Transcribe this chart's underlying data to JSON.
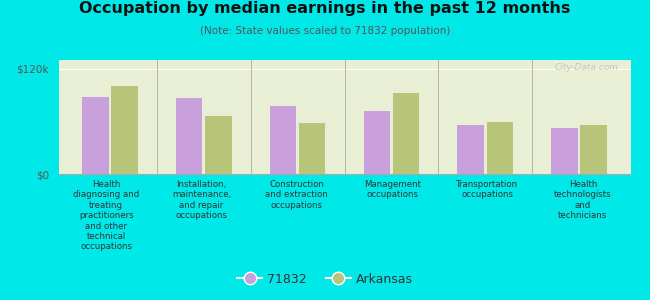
{
  "title": "Occupation by median earnings in the past 12 months",
  "subtitle": "(Note: State values scaled to 71832 population)",
  "background_color": "#00e8e8",
  "plot_bg_top": "#e8efd4",
  "plot_bg_bottom": "#f5f8ec",
  "categories": [
    "Health\ndiagnosing and\ntreating\npractitioners\nand other\ntechnical\noccupations",
    "Installation,\nmaintenance,\nand repair\noccupations",
    "Construction\nand extraction\noccupations",
    "Management\noccupations",
    "Transportation\noccupations",
    "Health\ntechnologists\nand\ntechnicians"
  ],
  "values_71832": [
    88000,
    87000,
    78000,
    72000,
    56000,
    52000
  ],
  "values_arkansas": [
    100000,
    66000,
    58000,
    92000,
    59000,
    56000
  ],
  "color_71832": "#c9a0dc",
  "color_arkansas": "#b8c47a",
  "ylim": [
    0,
    130000
  ],
  "yticks": [
    0,
    120000
  ],
  "ytick_labels": [
    "$0",
    "$120k"
  ],
  "legend_label_1": "71832",
  "legend_label_2": "Arkansas",
  "watermark": "City-Data.com"
}
